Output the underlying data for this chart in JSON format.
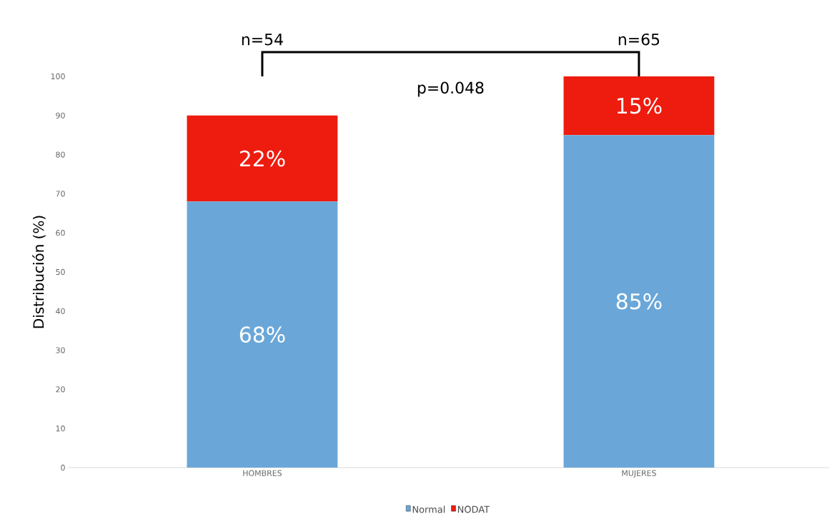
{
  "chart_data": {
    "type": "bar",
    "stacked": true,
    "ylabel": "Distribución (%)",
    "categories": [
      "HOMBRES",
      "MUJERES"
    ],
    "series": [
      {
        "name": "Normal",
        "color": "#6aa7d8",
        "values": [
          68,
          85
        ],
        "value_labels": [
          "68%",
          "85%"
        ]
      },
      {
        "name": "NODAT",
        "color": "#ee1c0e",
        "values": [
          22,
          15
        ],
        "value_labels": [
          "22%",
          "15%"
        ]
      }
    ],
    "ylim": [
      0,
      100
    ],
    "yticks": [
      0,
      10,
      20,
      30,
      40,
      50,
      60,
      70,
      80,
      90,
      100
    ],
    "legend": "bottom",
    "grid": false,
    "annotations": [
      "n=54",
      "n=65",
      "p=0.048"
    ]
  }
}
